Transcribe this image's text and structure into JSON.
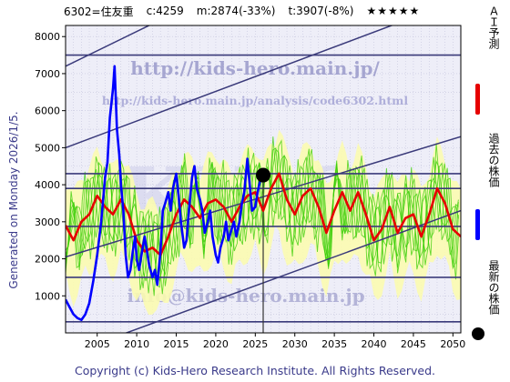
{
  "header": {
    "code_name": "6302=住友重",
    "current": "c:4259",
    "median": "m:2874(-33%)",
    "target": "t:3907(-8%)",
    "stars": "★★★★★"
  },
  "side_text": "Generated on Monday 2026/1/5.",
  "footer_text": "Copyright (c) Kids-Hero Research Institute. All Rights Reserved.",
  "watermarks": {
    "url_main": "http://kids-hero.main.jp/",
    "url_analysis": "http://kids-hero.main.jp/analysis/code6302.html",
    "big": "KIDS",
    "email": "info@kids-hero.main.jp"
  },
  "legend": {
    "forecast": "ＡＩ予測",
    "past": "過去の株価",
    "latest": "最新の株価"
  },
  "colors": {
    "forecast": "#e60000",
    "past": "#0000ff",
    "band_fill": "#fbfbb0",
    "green": "#33cc00",
    "grid_line": "#3a3a7a",
    "channel": "#3a3a7a"
  },
  "chart_data": {
    "type": "line",
    "xlim": [
      2001,
      2051
    ],
    "ylim": [
      0,
      8300
    ],
    "xticks": [
      2005,
      2010,
      2015,
      2020,
      2025,
      2030,
      2035,
      2040,
      2045,
      2050
    ],
    "yticks": [
      1000,
      2000,
      3000,
      4000,
      5000,
      6000,
      7000,
      8000
    ],
    "horizontal_levels": [
      7500,
      4300,
      3900,
      2874,
      1500,
      300
    ],
    "current_marker": {
      "x": 2026.0,
      "y": 4259,
      "label": "c:4259"
    },
    "present_year": 2026.0,
    "channels": [
      {
        "x": [
          2001,
          2051
        ],
        "y": [
          2050,
          5300
        ]
      },
      {
        "x": [
          2001,
          2051
        ],
        "y": [
          -600,
          3300
        ]
      },
      {
        "x": [
          2001,
          2025
        ],
        "y": [
          7200,
          9700
        ]
      },
      {
        "x": [
          2001,
          2051
        ],
        "y": [
          5000,
          9000
        ]
      }
    ],
    "series": [
      {
        "name": "過去の株価",
        "x": [
          2001.0,
          2001.5,
          2002.0,
          2002.5,
          2003.0,
          2003.5,
          2004.0,
          2004.5,
          2005.0,
          2005.5,
          2006.0,
          2006.3,
          2006.6,
          2007.0,
          2007.2,
          2007.5,
          2007.8,
          2008.0,
          2008.3,
          2008.6,
          2008.9,
          2009.2,
          2009.5,
          2009.8,
          2010.0,
          2010.3,
          2010.6,
          2011.0,
          2011.3,
          2011.6,
          2012.0,
          2012.3,
          2012.6,
          2013.0,
          2013.3,
          2013.6,
          2014.0,
          2014.3,
          2014.6,
          2015.0,
          2015.3,
          2015.6,
          2016.0,
          2016.3,
          2016.6,
          2017.0,
          2017.3,
          2017.6,
          2018.0,
          2018.3,
          2018.6,
          2019.0,
          2019.3,
          2019.6,
          2020.0,
          2020.3,
          2020.6,
          2021.0,
          2021.3,
          2021.6,
          2022.0,
          2022.3,
          2022.6,
          2023.0,
          2023.3,
          2023.6,
          2024.0,
          2024.3,
          2024.6,
          2025.0,
          2025.3,
          2025.6,
          2026.0
        ],
        "values": [
          900,
          700,
          500,
          400,
          350,
          500,
          800,
          1400,
          2100,
          3000,
          4200,
          4600,
          5800,
          6600,
          7200,
          5500,
          4800,
          4000,
          3300,
          2100,
          1500,
          1700,
          2200,
          2600,
          2000,
          1700,
          2100,
          2600,
          2200,
          1800,
          1500,
          1700,
          1300,
          2200,
          3300,
          3500,
          3800,
          3300,
          3900,
          4300,
          3700,
          3000,
          2300,
          2500,
          3300,
          4200,
          4500,
          3900,
          3600,
          3300,
          2700,
          3000,
          3300,
          2600,
          2100,
          1900,
          2300,
          2600,
          3000,
          2500,
          2800,
          3000,
          2600,
          3000,
          3500,
          3800,
          4700,
          4000,
          3300,
          3400,
          3800,
          4100,
          4259
        ]
      },
      {
        "name": "ＡＩ予測",
        "x": [
          2001.0,
          2002.0,
          2003.0,
          2004.0,
          2005.0,
          2006.0,
          2007.0,
          2008.0,
          2009.0,
          2010.0,
          2011.0,
          2012.0,
          2013.0,
          2014.0,
          2015.0,
          2016.0,
          2017.0,
          2018.0,
          2019.0,
          2020.0,
          2021.0,
          2022.0,
          2023.0,
          2024.0,
          2025.0,
          2026.0,
          2027.0,
          2028.0,
          2029.0,
          2030.0,
          2031.0,
          2032.0,
          2033.0,
          2034.0,
          2035.0,
          2036.0,
          2037.0,
          2038.0,
          2039.0,
          2040.0,
          2041.0,
          2042.0,
          2043.0,
          2044.0,
          2045.0,
          2046.0,
          2047.0,
          2048.0,
          2049.0,
          2050.0,
          2051.0
        ],
        "values": [
          2900,
          2500,
          3000,
          3200,
          3700,
          3400,
          3200,
          3600,
          3200,
          2500,
          2200,
          2300,
          2100,
          2600,
          3200,
          3600,
          3400,
          3100,
          3500,
          3600,
          3400,
          3000,
          3400,
          3700,
          3800,
          3300,
          3900,
          4300,
          3600,
          3200,
          3700,
          3900,
          3400,
          2700,
          3300,
          3800,
          3300,
          3800,
          3200,
          2500,
          2800,
          3400,
          2700,
          3100,
          3200,
          2600,
          3200,
          3900,
          3500,
          2800,
          2600
        ]
      }
    ]
  }
}
